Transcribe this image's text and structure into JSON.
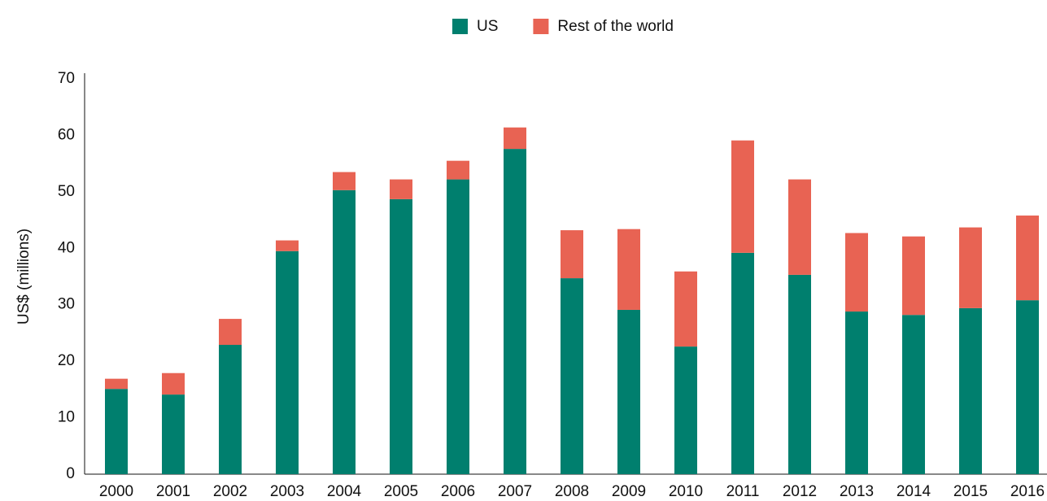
{
  "chart_data": {
    "type": "stacked_bar",
    "categories": [
      "2000",
      "2001",
      "2002",
      "2003",
      "2004",
      "2005",
      "2006",
      "2007",
      "2008",
      "2009",
      "2010",
      "2011",
      "2012",
      "2013",
      "2014",
      "2015",
      "2016"
    ],
    "series": [
      {
        "name": "US",
        "color": "#007f6e",
        "values": [
          15.1,
          14.1,
          22.9,
          39.5,
          50.3,
          48.7,
          52.2,
          57.6,
          34.7,
          29.1,
          22.6,
          39.2,
          35.3,
          28.8,
          28.2,
          29.4,
          30.8
        ]
      },
      {
        "name": "Rest of the world",
        "color": "#e86353",
        "values": [
          1.8,
          3.8,
          4.6,
          1.9,
          3.2,
          3.5,
          3.3,
          3.8,
          8.5,
          14.3,
          13.3,
          19.9,
          16.9,
          13.9,
          13.9,
          14.3,
          15.0
        ]
      }
    ],
    "y_label": "US$ (millions)",
    "ylim": [
      0,
      70
    ],
    "yticks": [
      0,
      10,
      20,
      30,
      40,
      50,
      60,
      70
    ],
    "grid": false,
    "legend": "top"
  }
}
